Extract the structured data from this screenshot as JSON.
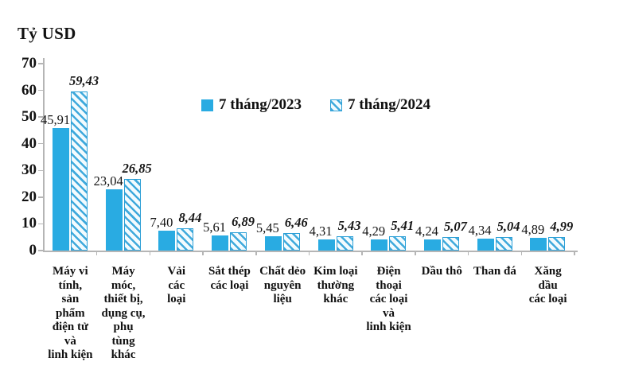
{
  "chart_data": {
    "type": "bar",
    "title": "Tỷ USD",
    "xlabel": "",
    "ylabel": "Tỷ USD",
    "ylim": [
      0,
      70
    ],
    "yticks": [
      0,
      10,
      20,
      30,
      40,
      50,
      60,
      70
    ],
    "grid": false,
    "legend_position": "top-center",
    "value_label_decimal_separator": ",",
    "categories": [
      "Máy vi tính, sản phẩm điện tử và linh kiện",
      "Máy móc, thiết bị, dụng cụ, phụ tùng khác",
      "Vải các loại",
      "Sắt thép các loại",
      "Chất dẻo nguyên liệu",
      "Kim loại thường khác",
      "Điện thoại các loại và linh kiện",
      "Dầu thô",
      "Than đá",
      "Xăng dầu các loại"
    ],
    "category_lines": [
      [
        "Máy vi",
        "tính,",
        "sản",
        "phẩm",
        "điện tử",
        "và",
        "linh kiện"
      ],
      [
        "Máy",
        "móc,",
        "thiết bị,",
        "dụng cụ,",
        "phụ",
        "tùng",
        "khác"
      ],
      [
        "Vải",
        "các",
        "loại"
      ],
      [
        "Sắt thép",
        "các loại"
      ],
      [
        "Chất dẻo",
        "nguyên",
        "liệu"
      ],
      [
        "Kim loại",
        "thường",
        "khác"
      ],
      [
        "Điện",
        "thoại",
        "các loại",
        "và",
        "linh kiện"
      ],
      [
        "Dầu thô"
      ],
      [
        "Than đá"
      ],
      [
        "Xăng",
        "dầu",
        "các loại"
      ]
    ],
    "series": [
      {
        "name": "7 tháng/2023",
        "style": "solid",
        "values": [
          45.91,
          23.04,
          7.4,
          5.61,
          5.45,
          4.31,
          4.29,
          4.24,
          4.34,
          4.89
        ],
        "value_labels": [
          "45,91",
          "23,04",
          "7,40",
          "5,61",
          "5,45",
          "4,31",
          "4,29",
          "4,24",
          "4,34",
          "4,89"
        ]
      },
      {
        "name": "7 tháng/2024",
        "style": "hatched",
        "values": [
          59.43,
          26.85,
          8.44,
          6.89,
          6.46,
          5.43,
          5.41,
          5.07,
          5.04,
          4.99
        ],
        "value_labels": [
          "59,43",
          "26,85",
          "8,44",
          "6,89",
          "6,46",
          "5,43",
          "5,41",
          "5,07",
          "5,04",
          "4,99"
        ]
      }
    ],
    "colors": {
      "bar_solid": "#29abe2",
      "hatch_stripe": "#3fa9dc",
      "hatch_background": "#f3fbfe",
      "hatch_border": "#2b9fd6",
      "axis": "#b5b5b5",
      "text": "#111111"
    }
  }
}
